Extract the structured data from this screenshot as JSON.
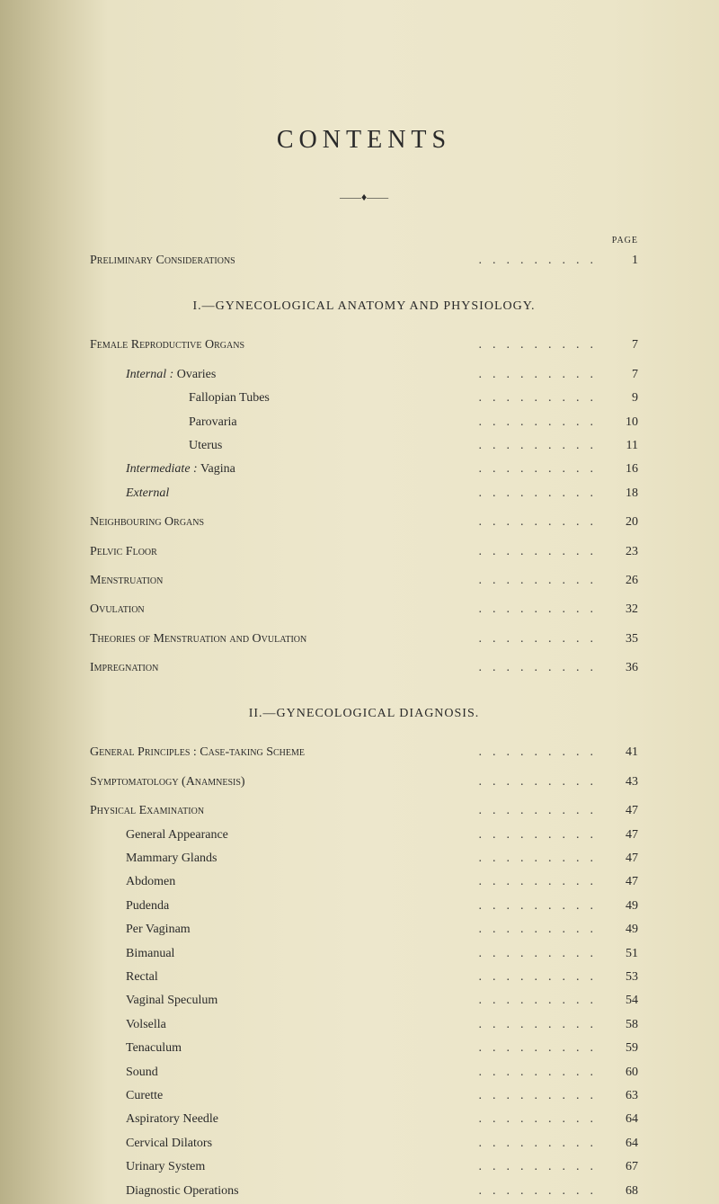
{
  "title": "CONTENTS",
  "divider": "♦",
  "page_label": "PAGE",
  "preliminary": {
    "label": "Preliminary Considerations",
    "page": "1"
  },
  "section1": {
    "heading": "I.—GYNECOLOGICAL ANATOMY AND PHYSIOLOGY.",
    "female_repro": {
      "label": "Female Reproductive Organs",
      "page": "7"
    },
    "internal_label": "Internal :",
    "internal": {
      "ovaries": {
        "label": "Ovaries",
        "page": "7"
      },
      "fallopian": {
        "label": "Fallopian Tubes",
        "page": "9"
      },
      "parovaria": {
        "label": "Parovaria",
        "page": "10"
      },
      "uterus": {
        "label": "Uterus",
        "page": "11"
      }
    },
    "intermediate_label": "Intermediate :",
    "intermediate": {
      "vagina": {
        "label": "Vagina",
        "page": "16"
      }
    },
    "external": {
      "label": "External",
      "page": "18"
    },
    "neighbouring": {
      "label": "Neighbouring Organs",
      "page": "20"
    },
    "pelvic": {
      "label": "Pelvic Floor",
      "page": "23"
    },
    "menstruation": {
      "label": "Menstruation",
      "page": "26"
    },
    "ovulation": {
      "label": "Ovulation",
      "page": "32"
    },
    "theories": {
      "label": "Theories of Menstruation and Ovulation",
      "page": "35"
    },
    "impregnation": {
      "label": "Impregnation",
      "page": "36"
    }
  },
  "section2": {
    "heading": "II.—GYNECOLOGICAL DIAGNOSIS.",
    "general_principles": {
      "label": "General Principles : Case-taking Scheme",
      "page": "41"
    },
    "symptomatology": {
      "label": "Symptomatology (Anamnesis)",
      "page": "43"
    },
    "physical_exam": {
      "label": "Physical Examination",
      "page": "47"
    },
    "items": {
      "general_appearance": {
        "label": "General Appearance",
        "page": "47"
      },
      "mammary": {
        "label": "Mammary Glands",
        "page": "47"
      },
      "abdomen": {
        "label": "Abdomen",
        "page": "47"
      },
      "pudenda": {
        "label": "Pudenda",
        "page": "49"
      },
      "per_vaginam": {
        "label": "Per Vaginam",
        "page": "49"
      },
      "bimanual": {
        "label": "Bimanual",
        "page": "51"
      },
      "rectal": {
        "label": "Rectal",
        "page": "53"
      },
      "vaginal_speculum": {
        "label": "Vaginal Speculum",
        "page": "54"
      },
      "volsella": {
        "label": "Volsella",
        "page": "58"
      },
      "tenaculum": {
        "label": "Tenaculum",
        "page": "59"
      },
      "sound": {
        "label": "Sound",
        "page": "60"
      },
      "curette": {
        "label": "Curette",
        "page": "63"
      },
      "aspiratory": {
        "label": "Aspiratory Needle",
        "page": "64"
      },
      "cervical": {
        "label": "Cervical Dilators",
        "page": "64"
      },
      "urinary": {
        "label": "Urinary System",
        "page": "67"
      },
      "diagnostic": {
        "label": "Diagnostic Operations",
        "page": "68"
      }
    }
  },
  "dots": "........."
}
